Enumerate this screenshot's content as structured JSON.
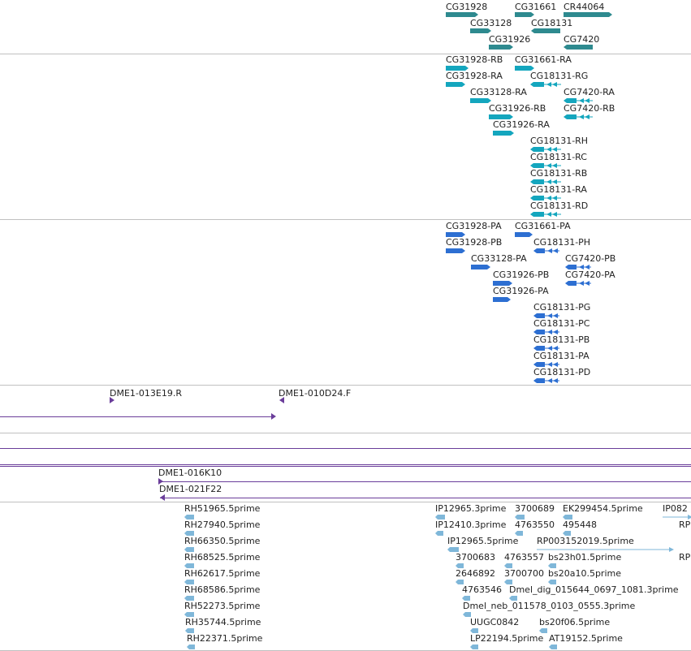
{
  "colors": {
    "gene": "#2e8a8f",
    "transcript": "#14a6be",
    "protein": "#2d6fd2",
    "clone": "#6a3d9a",
    "est": "#7fb7d9",
    "separator": "#c0c0c0",
    "label": "#222222"
  },
  "tracks": {
    "genes": {
      "items": [
        {
          "label": "CG31928"
        },
        {
          "label": "CG31661"
        },
        {
          "label": "CR44064"
        },
        {
          "label": "CG33128"
        },
        {
          "label": "CG18131"
        },
        {
          "label": "CG31926"
        },
        {
          "label": "CG7420"
        }
      ]
    },
    "transcripts": {
      "items": [
        {
          "label": "CG31928-RB"
        },
        {
          "label": "CG31661-RA"
        },
        {
          "label": "CG31928-RA"
        },
        {
          "label": "CG18131-RG"
        },
        {
          "label": "CG33128-RA"
        },
        {
          "label": "CG7420-RA"
        },
        {
          "label": "CG31926-RB"
        },
        {
          "label": "CG7420-RB"
        },
        {
          "label": "CG31926-RA"
        },
        {
          "label": "CG18131-RH"
        },
        {
          "label": "CG18131-RC"
        },
        {
          "label": "CG18131-RB"
        },
        {
          "label": "CG18131-RA"
        },
        {
          "label": "CG18131-RD"
        }
      ]
    },
    "proteins": {
      "items": [
        {
          "label": "CG31928-PA"
        },
        {
          "label": "CG31661-PA"
        },
        {
          "label": "CG31928-PB"
        },
        {
          "label": "CG18131-PH"
        },
        {
          "label": "CG33128-PA"
        },
        {
          "label": "CG7420-PB"
        },
        {
          "label": "CG31926-PB"
        },
        {
          "label": "CG7420-PA"
        },
        {
          "label": "CG31926-PA"
        },
        {
          "label": "CG18131-PG"
        },
        {
          "label": "CG18131-PC"
        },
        {
          "label": "CG18131-PB"
        },
        {
          "label": "CG18131-PA"
        },
        {
          "label": "CG18131-PD"
        }
      ]
    },
    "clones_top": {
      "items": [
        {
          "label": "DME1-013E19.R"
        },
        {
          "label": "DME1-010D24.F"
        }
      ]
    },
    "clones_bottom": {
      "items": [
        {
          "label": "DME1-016K10"
        },
        {
          "label": "DME1-021F22"
        }
      ]
    },
    "ests": {
      "items": [
        {
          "label": "RH51965.5prime"
        },
        {
          "label": "RH27940.5prime"
        },
        {
          "label": "RH66350.5prime"
        },
        {
          "label": "RH68525.5prime"
        },
        {
          "label": "RH62617.5prime"
        },
        {
          "label": "RH68586.5prime"
        },
        {
          "label": "RH52273.5prime"
        },
        {
          "label": "RH35744.5prime"
        },
        {
          "label": "RH22371.5prime"
        },
        {
          "label": "IP12965.3prime"
        },
        {
          "label": "3700689"
        },
        {
          "label": "EK299454.5prime"
        },
        {
          "label": "IP082"
        },
        {
          "label": "IP12410.3prime"
        },
        {
          "label": "4763550"
        },
        {
          "label": "495448"
        },
        {
          "label": "RP"
        },
        {
          "label": "IP12965.5prime"
        },
        {
          "label": "RP003152019.5prime"
        },
        {
          "label": "3700683"
        },
        {
          "label": "4763557"
        },
        {
          "label": "bs23h01.5prime"
        },
        {
          "label": "RP"
        },
        {
          "label": "2646892"
        },
        {
          "label": "3700700"
        },
        {
          "label": "bs20a10.5prime"
        },
        {
          "label": "4763546"
        },
        {
          "label": "Dmel_dig_015644_0697_1081.3prime"
        },
        {
          "label": "Dmel_neb_011578_0103_0555.3prime"
        },
        {
          "label": "UUGC0842"
        },
        {
          "label": "bs20f06.5prime"
        },
        {
          "label": "LP22194.5prime"
        },
        {
          "label": "AT19152.5prime"
        }
      ]
    }
  }
}
